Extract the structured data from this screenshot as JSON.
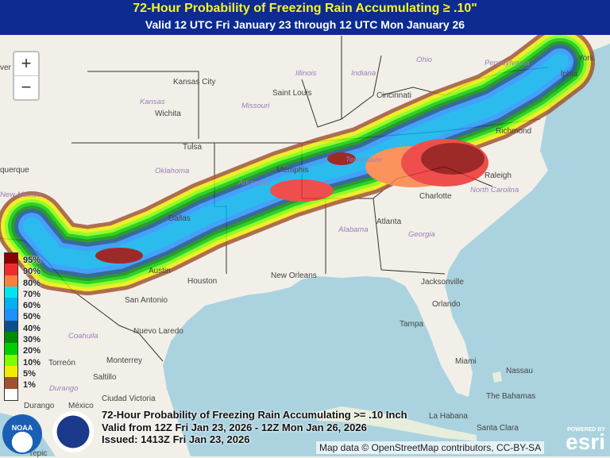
{
  "header": {
    "title": "72-Hour Probability of Freezing Rain Accumulating ≥ .10\"",
    "subtitle": "Valid 12 UTC Fri January 23 through 12 UTC Mon January 26"
  },
  "zoom": {
    "in": "+",
    "out": "−"
  },
  "legend": [
    {
      "label": "95%",
      "color": "#8b0000"
    },
    {
      "label": "90%",
      "color": "#ee2c2c"
    },
    {
      "label": "80%",
      "color": "#ff7f3f"
    },
    {
      "label": "70%",
      "color": "#00e5ee"
    },
    {
      "label": "60%",
      "color": "#00b2ee"
    },
    {
      "label": "50%",
      "color": "#1e90ff"
    },
    {
      "label": "40%",
      "color": "#104e8b"
    },
    {
      "label": "30%",
      "color": "#008b00"
    },
    {
      "label": "20%",
      "color": "#00cd00"
    },
    {
      "label": "10%",
      "color": "#7fff00"
    },
    {
      "label": "5%",
      "color": "#eeee00"
    },
    {
      "label": "1%",
      "color": "#a0522d"
    },
    {
      "label": "",
      "color": "#ffffff"
    }
  ],
  "places": {
    "denver": "ver",
    "kansas_city": "Kansas City",
    "illinois": "Illinois",
    "indiana": "Indiana",
    "ohio": "Ohio",
    "pennsylvania": "Pennsylvania",
    "new_york": "York",
    "philadelphia": "lphia",
    "kansas": "Kansas",
    "missouri": "Missouri",
    "saint_louis": "Saint Louis",
    "cincinnati": "Cincinnati",
    "wichita": "Wichita",
    "tulsa": "Tulsa",
    "oklahoma": "Oklahoma",
    "albuquerque": "querque",
    "new_mexico": "New Mexico",
    "arkansas": "Arkansas",
    "memphis": "Memphis",
    "tennessee": "Tennessee",
    "richmond": "Richmond",
    "raleigh": "Raleigh",
    "charlotte": "Charlotte",
    "north_carolina": "North Carolina",
    "atlanta": "Atlanta",
    "georgia": "Georgia",
    "alabama": "Alabama",
    "dallas": "Dallas",
    "austin": "Austin",
    "houston": "Houston",
    "san_antonio": "San Antonio",
    "new_orleans": "New Orleans",
    "jacksonville": "Jacksonville",
    "orlando": "Orlando",
    "tampa": "Tampa",
    "miami": "Miami",
    "nuevo_laredo": "Nuevo Laredo",
    "monterrey": "Monterrey",
    "coahuila": "Coahuila",
    "torreon": "Torreón",
    "saltillo": "Saltillo",
    "durango_state": "Durango",
    "durango": "Durango",
    "mexico": "México",
    "ciudad_victoria": "Ciudad Victoria",
    "nassau": "Nassau",
    "bahamas": "The Bahamas",
    "habana": "La Habana",
    "santa_clara": "Santa Clara",
    "tepic": "Tepic"
  },
  "issue": {
    "line1": "72-Hour Probability of Freezing Rain Accumulating >= .10 Inch",
    "line2": "Valid from 12Z Fri Jan 23, 2026 - 12Z Mon Jan 26, 2026",
    "line3": "Issued: 1413Z Fri Jan 23, 2026"
  },
  "attribution": "Map data © OpenStreetMap contributors, CC-BY-SA",
  "esri": {
    "powered": "POWERED BY",
    "brand": "esri"
  },
  "logos": {
    "noaa": "NOAA",
    "nws": "NATIONAL WEATHER SERVICE"
  }
}
